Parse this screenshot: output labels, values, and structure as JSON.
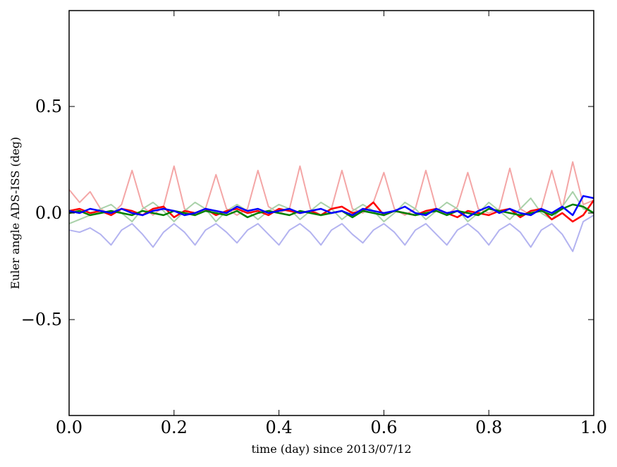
{
  "chart_data": {
    "type": "line",
    "title": "",
    "xlabel": "time (day) since 2013/07/12",
    "ylabel": "Euler angle ADS-ISS (deg)",
    "xlim": [
      0.0,
      1.0
    ],
    "ylim": [
      -0.95,
      0.95
    ],
    "grid": false,
    "legend": "none",
    "x_ticks": [
      0.0,
      0.2,
      0.4,
      0.6,
      0.8,
      1.0
    ],
    "x_tick_labels": [
      "0.0",
      "0.2",
      "0.4",
      "0.6",
      "0.8",
      "1.0"
    ],
    "y_ticks": [
      0.5,
      0.0,
      -0.5
    ],
    "y_tick_labels": [
      "0.5",
      "0.0",
      "−0.5"
    ],
    "x": [
      0.0,
      0.02,
      0.04,
      0.06,
      0.08,
      0.1,
      0.12,
      0.14,
      0.16,
      0.18,
      0.2,
      0.22,
      0.24,
      0.26,
      0.28,
      0.3,
      0.32,
      0.34,
      0.36,
      0.38,
      0.4,
      0.42,
      0.44,
      0.46,
      0.48,
      0.5,
      0.52,
      0.54,
      0.56,
      0.58,
      0.6,
      0.62,
      0.64,
      0.66,
      0.68,
      0.7,
      0.72,
      0.74,
      0.76,
      0.78,
      0.8,
      0.82,
      0.84,
      0.86,
      0.88,
      0.9,
      0.92,
      0.94,
      0.96,
      0.98,
      1.0
    ],
    "series": [
      {
        "color": "#f4a6a6",
        "width": 2,
        "values": [
          0.11,
          0.05,
          0.1,
          0.02,
          -0.01,
          0.04,
          0.2,
          0.03,
          -0.01,
          0.03,
          0.22,
          0.02,
          -0.01,
          0.02,
          0.18,
          0.02,
          -0.01,
          0.02,
          0.2,
          0.03,
          0.0,
          0.02,
          0.22,
          0.02,
          -0.01,
          0.02,
          0.2,
          0.02,
          0.0,
          0.05,
          0.19,
          0.02,
          -0.01,
          0.02,
          0.2,
          0.02,
          -0.01,
          0.03,
          0.19,
          0.02,
          0.0,
          0.02,
          0.21,
          0.02,
          -0.01,
          0.02,
          0.2,
          0.02,
          0.24,
          0.04,
          0.06
        ]
      },
      {
        "color": "#a9d1a9",
        "width": 2,
        "values": [
          -0.05,
          -0.03,
          -0.01,
          0.02,
          0.04,
          0.0,
          -0.04,
          0.02,
          0.05,
          0.01,
          -0.04,
          0.01,
          0.05,
          0.02,
          -0.04,
          0.01,
          0.04,
          0.01,
          -0.03,
          0.01,
          0.04,
          0.02,
          -0.03,
          0.01,
          0.05,
          0.02,
          -0.03,
          0.01,
          0.04,
          0.01,
          -0.04,
          0.0,
          0.05,
          0.02,
          -0.03,
          0.01,
          0.05,
          0.02,
          -0.04,
          0.0,
          0.05,
          0.01,
          -0.03,
          0.02,
          0.07,
          0.0,
          -0.03,
          0.03,
          0.1,
          0.02,
          0.0
        ]
      },
      {
        "color": "#b3b3f0",
        "width": 2,
        "values": [
          -0.08,
          -0.09,
          -0.07,
          -0.1,
          -0.15,
          -0.08,
          -0.05,
          -0.1,
          -0.16,
          -0.09,
          -0.05,
          -0.09,
          -0.15,
          -0.08,
          -0.05,
          -0.09,
          -0.14,
          -0.08,
          -0.05,
          -0.1,
          -0.15,
          -0.08,
          -0.05,
          -0.09,
          -0.15,
          -0.08,
          -0.05,
          -0.1,
          -0.14,
          -0.08,
          -0.05,
          -0.09,
          -0.15,
          -0.08,
          -0.05,
          -0.1,
          -0.15,
          -0.08,
          -0.05,
          -0.09,
          -0.15,
          -0.08,
          -0.05,
          -0.09,
          -0.16,
          -0.08,
          -0.05,
          -0.1,
          -0.18,
          -0.04,
          -0.01
        ]
      },
      {
        "color": "#ff0000",
        "width": 2.5,
        "values": [
          0.01,
          0.02,
          0.0,
          0.01,
          -0.01,
          0.02,
          0.01,
          -0.01,
          0.02,
          0.03,
          -0.02,
          0.01,
          0.0,
          0.02,
          -0.01,
          0.01,
          0.02,
          0.0,
          0.01,
          -0.01,
          0.02,
          0.01,
          0.0,
          0.01,
          -0.01,
          0.02,
          0.03,
          0.0,
          0.01,
          0.05,
          -0.01,
          0.01,
          0.0,
          -0.01,
          0.01,
          0.02,
          0.0,
          -0.02,
          0.01,
          0.0,
          -0.01,
          0.01,
          0.02,
          -0.02,
          0.01,
          0.02,
          -0.03,
          0.0,
          -0.04,
          -0.01,
          0.06
        ]
      },
      {
        "color": "#008000",
        "width": 2.5,
        "values": [
          0.0,
          0.01,
          -0.01,
          0.0,
          0.01,
          0.0,
          -0.01,
          0.01,
          0.0,
          -0.01,
          0.01,
          0.0,
          -0.01,
          0.01,
          0.0,
          -0.01,
          0.01,
          -0.02,
          0.0,
          0.01,
          0.0,
          -0.01,
          0.01,
          0.0,
          -0.01,
          0.0,
          0.01,
          -0.02,
          0.01,
          0.0,
          -0.01,
          0.01,
          0.0,
          -0.01,
          0.0,
          0.01,
          -0.01,
          0.01,
          0.0,
          -0.01,
          0.02,
          0.01,
          0.0,
          -0.01,
          0.0,
          0.01,
          -0.01,
          0.02,
          0.04,
          0.03,
          0.0
        ]
      },
      {
        "color": "#0000ff",
        "width": 2.5,
        "values": [
          0.01,
          0.0,
          0.02,
          0.01,
          0.0,
          0.02,
          0.0,
          -0.01,
          0.01,
          0.02,
          0.01,
          -0.01,
          0.0,
          0.02,
          0.01,
          0.0,
          0.03,
          0.01,
          0.02,
          0.0,
          0.01,
          0.02,
          0.0,
          0.01,
          0.02,
          0.0,
          0.01,
          -0.01,
          0.02,
          0.01,
          0.0,
          0.01,
          0.03,
          0.0,
          -0.01,
          0.02,
          0.0,
          0.01,
          -0.02,
          0.01,
          0.03,
          0.0,
          0.02,
          0.0,
          -0.01,
          0.02,
          0.0,
          0.03,
          -0.01,
          0.08,
          0.07
        ]
      }
    ]
  }
}
